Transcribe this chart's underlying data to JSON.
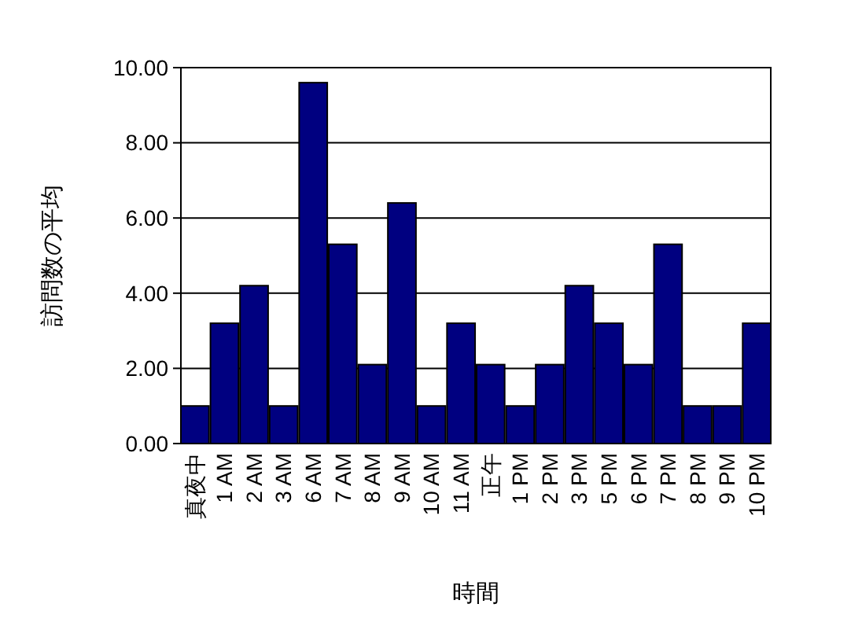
{
  "chart_data": {
    "type": "bar",
    "xlabel": "時間",
    "ylabel": "訪問数の平均",
    "categories": [
      "真夜中",
      "1 AM",
      "2 AM",
      "3 AM",
      "6 AM",
      "7 AM",
      "8 AM",
      "9 AM",
      "10 AM",
      "11 AM",
      "正午",
      "1 PM",
      "2 PM",
      "3 PM",
      "5 PM",
      "6 PM",
      "7 PM",
      "8 PM",
      "9 PM",
      "10 PM"
    ],
    "values": [
      1,
      3.2,
      4.2,
      1,
      9.6,
      5.3,
      2.1,
      6.4,
      1,
      3.2,
      2.1,
      1,
      2.1,
      4.2,
      3.2,
      2.1,
      5.3,
      1,
      1,
      3.2
    ],
    "color": "#000080",
    "ylim": [
      0,
      10
    ],
    "yticks": [
      {
        "value": 0,
        "label": "0.00"
      },
      {
        "value": 2,
        "label": "2.00"
      },
      {
        "value": 4,
        "label": "4.00"
      },
      {
        "value": 6,
        "label": "6.00"
      },
      {
        "value": 8,
        "label": "8.00"
      },
      {
        "value": 10,
        "label": "10.00"
      }
    ],
    "grid": "y"
  }
}
